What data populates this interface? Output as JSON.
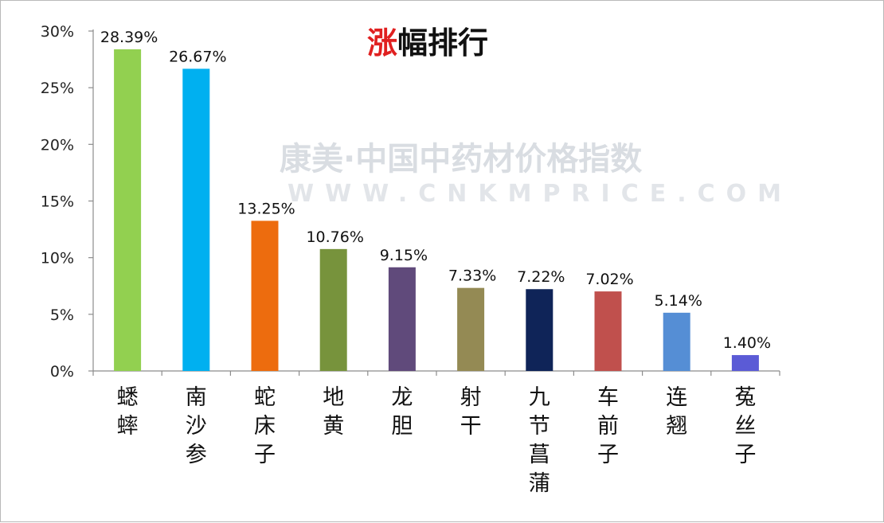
{
  "title": {
    "accent_char": "涨",
    "rest": "幅排行",
    "accent_color": "#e02020"
  },
  "watermark": {
    "line1": "康美·中国中药材价格指数",
    "line2": "WWW.CNKMPRICE.COM"
  },
  "chart_data": {
    "type": "bar",
    "title": "涨幅排行",
    "categories": [
      "蟋蟀",
      "南沙参",
      "蛇床子",
      "地黄",
      "龙胆",
      "射干",
      "九节菖蒲",
      "车前子",
      "连翘",
      "菟丝子"
    ],
    "values": [
      28.39,
      26.67,
      13.25,
      10.76,
      9.15,
      7.33,
      7.22,
      7.02,
      5.14,
      1.4
    ],
    "data_labels": [
      "28.39%",
      "26.67%",
      "13.25%",
      "10.76%",
      "9.15%",
      "7.33%",
      "7.22%",
      "7.02%",
      "5.14%",
      "1.40%"
    ],
    "colors": [
      "#92d050",
      "#00b0f0",
      "#ed6c0e",
      "#77933c",
      "#604a7b",
      "#948a54",
      "#0f2458",
      "#c0504d",
      "#558ed5",
      "#5b5bd6"
    ],
    "y_ticks": [
      0,
      5,
      10,
      15,
      20,
      25,
      30
    ],
    "y_tick_labels": [
      "0%",
      "5%",
      "10%",
      "15%",
      "20%",
      "25%",
      "30%"
    ],
    "ylim": [
      0,
      30
    ],
    "xlabel": "",
    "ylabel": "",
    "grid": false,
    "legend": "none"
  }
}
